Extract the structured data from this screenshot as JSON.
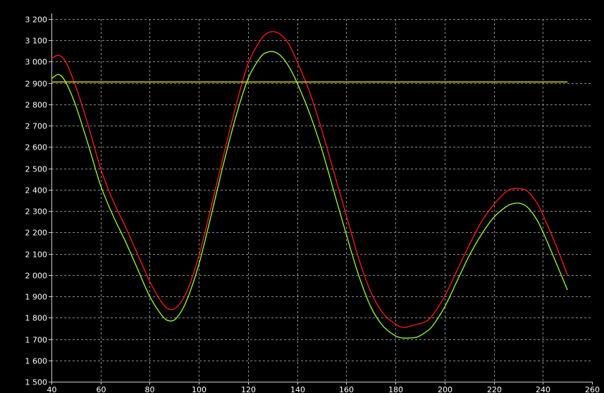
{
  "chart_data": {
    "type": "line",
    "title": "",
    "xlabel": "",
    "ylabel": "",
    "xlim": [
      40,
      260
    ],
    "ylim": [
      1500,
      3200
    ],
    "x_ticks": [
      40,
      60,
      80,
      100,
      120,
      140,
      160,
      180,
      200,
      220,
      240,
      260
    ],
    "x_tick_labels": [
      "40",
      "60",
      "80",
      "100",
      "120",
      "140",
      "160",
      "180",
      "200",
      "220",
      "240",
      "260"
    ],
    "y_ticks": [
      1500,
      1600,
      1700,
      1800,
      1900,
      2000,
      2100,
      2200,
      2300,
      2400,
      2500,
      2600,
      2700,
      2800,
      2900,
      3000,
      3100,
      3200
    ],
    "y_tick_labels": [
      "1 500",
      "1 600",
      "1 700",
      "1 800",
      "1 900",
      "2 000",
      "2 100",
      "2 200",
      "2 300",
      "2 400",
      "2 500",
      "2 600",
      "2 700",
      "2 800",
      "2 900",
      "3 000",
      "3 100",
      "3 200"
    ],
    "grid": true,
    "background": "#000000",
    "series": [
      {
        "color": "#ff1a1a",
        "x": [
          40,
          43,
          46,
          50,
          55,
          60,
          65,
          70,
          75,
          80,
          85,
          88,
          91,
          95,
          100,
          105,
          110,
          115,
          120,
          125,
          128,
          131,
          134,
          137,
          140,
          145,
          150,
          155,
          160,
          165,
          170,
          175,
          180,
          183,
          186,
          189,
          192,
          195,
          200,
          205,
          210,
          215,
          220,
          225,
          228,
          231,
          234,
          238,
          242,
          246,
          250
        ],
        "values": [
          3015,
          3030,
          2995,
          2880,
          2700,
          2500,
          2350,
          2230,
          2100,
          1970,
          1870,
          1840,
          1850,
          1920,
          2090,
          2320,
          2560,
          2790,
          2990,
          3100,
          3135,
          3140,
          3120,
          3075,
          3000,
          2860,
          2680,
          2480,
          2280,
          2080,
          1920,
          1820,
          1770,
          1755,
          1760,
          1770,
          1780,
          1810,
          1900,
          2020,
          2140,
          2250,
          2330,
          2390,
          2405,
          2405,
          2390,
          2330,
          2230,
          2120,
          2000
        ]
      },
      {
        "color": "#99ff33",
        "x": [
          40,
          43,
          46,
          50,
          55,
          60,
          65,
          70,
          75,
          80,
          85,
          88,
          91,
          95,
          100,
          105,
          110,
          115,
          120,
          125,
          128,
          131,
          134,
          137,
          140,
          145,
          150,
          155,
          160,
          165,
          170,
          175,
          180,
          183,
          186,
          189,
          192,
          195,
          200,
          205,
          210,
          215,
          220,
          225,
          228,
          231,
          234,
          238,
          242,
          246,
          250
        ],
        "values": [
          2920,
          2940,
          2900,
          2790,
          2610,
          2420,
          2280,
          2160,
          2030,
          1900,
          1810,
          1785,
          1800,
          1880,
          2050,
          2280,
          2520,
          2740,
          2920,
          3020,
          3045,
          3045,
          3020,
          2970,
          2900,
          2760,
          2590,
          2390,
          2190,
          2000,
          1850,
          1760,
          1715,
          1705,
          1705,
          1710,
          1730,
          1760,
          1850,
          1970,
          2090,
          2190,
          2270,
          2320,
          2335,
          2335,
          2315,
          2250,
          2150,
          2040,
          1930
        ]
      },
      {
        "color": "#e6e600",
        "x": [
          40,
          60,
          80,
          100,
          120,
          140,
          160,
          180,
          200,
          220,
          240,
          250
        ],
        "values": [
          2905,
          2905,
          2905,
          2905,
          2905,
          2905,
          2905,
          2905,
          2905,
          2905,
          2905,
          2905
        ]
      }
    ]
  }
}
